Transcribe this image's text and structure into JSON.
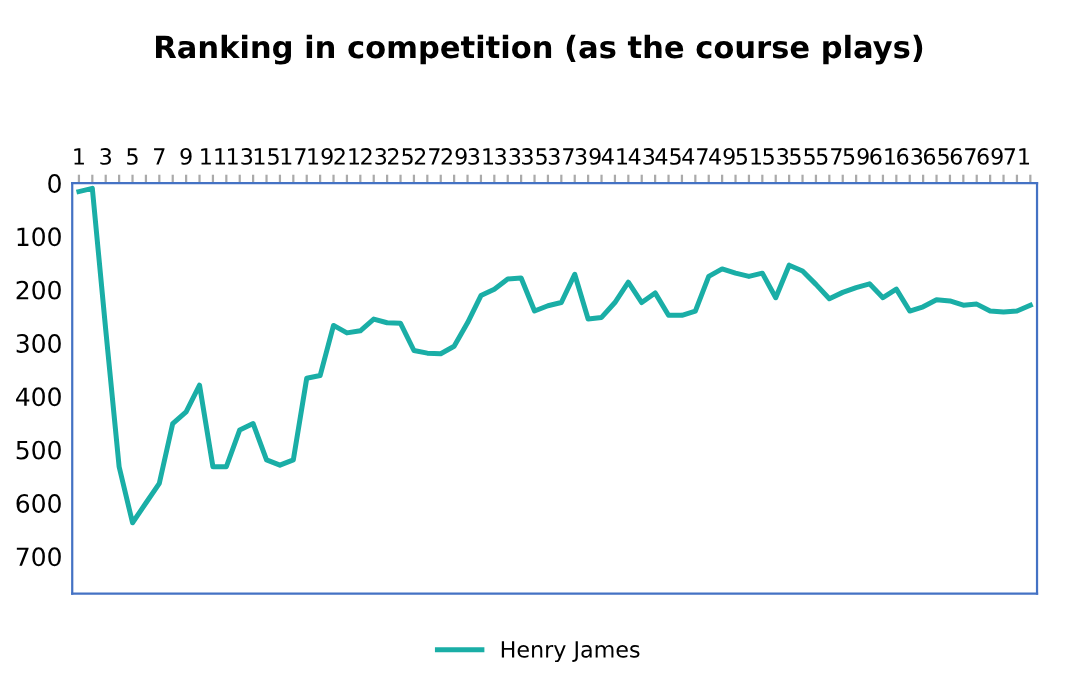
{
  "chart_data": {
    "type": "line",
    "title": "Ranking in competition (as the course plays)",
    "categories": [
      "1",
      null,
      "3",
      null,
      "5",
      null,
      "7",
      null,
      "9",
      null,
      "11",
      null,
      "13",
      null,
      "15",
      null,
      "17",
      null,
      "19",
      null,
      "21",
      null,
      "23",
      null,
      "25",
      null,
      "27",
      null,
      "29",
      null,
      "31",
      null,
      "33",
      null,
      "35",
      null,
      "37",
      null,
      "39",
      null,
      "41",
      null,
      "43",
      null,
      "45",
      null,
      "47",
      null,
      "49",
      null,
      "51",
      null,
      "53",
      null,
      "55",
      null,
      "57",
      null,
      "59",
      null,
      "61",
      null,
      "63",
      null,
      "65",
      null,
      "67",
      null,
      "69",
      null,
      "71",
      null
    ],
    "series": [
      {
        "name": "Henry James",
        "color": "#1aaea6",
        "values": [
          16,
          10,
          275,
          532,
          637,
          600,
          563,
          451,
          429,
          379,
          532,
          532,
          463,
          451,
          519,
          529,
          519,
          366,
          361,
          267,
          281,
          277,
          255,
          262,
          263,
          314,
          319,
          320,
          306,
          262,
          211,
          199,
          180,
          178,
          240,
          230,
          224,
          171,
          255,
          252,
          224,
          186,
          224,
          206,
          248,
          248,
          240,
          175,
          161,
          169,
          175,
          169,
          215,
          154,
          165,
          190,
          217,
          205,
          196,
          189,
          215,
          199,
          240,
          232,
          219,
          221,
          229,
          227,
          240,
          242,
          240,
          229
        ]
      }
    ],
    "ylim": [
      770,
      0
    ],
    "yticks": [
      0,
      100,
      200,
      300,
      400,
      500,
      600,
      700
    ],
    "grid": false,
    "legend": "bottom",
    "marker": "none",
    "line_style": "solid"
  }
}
